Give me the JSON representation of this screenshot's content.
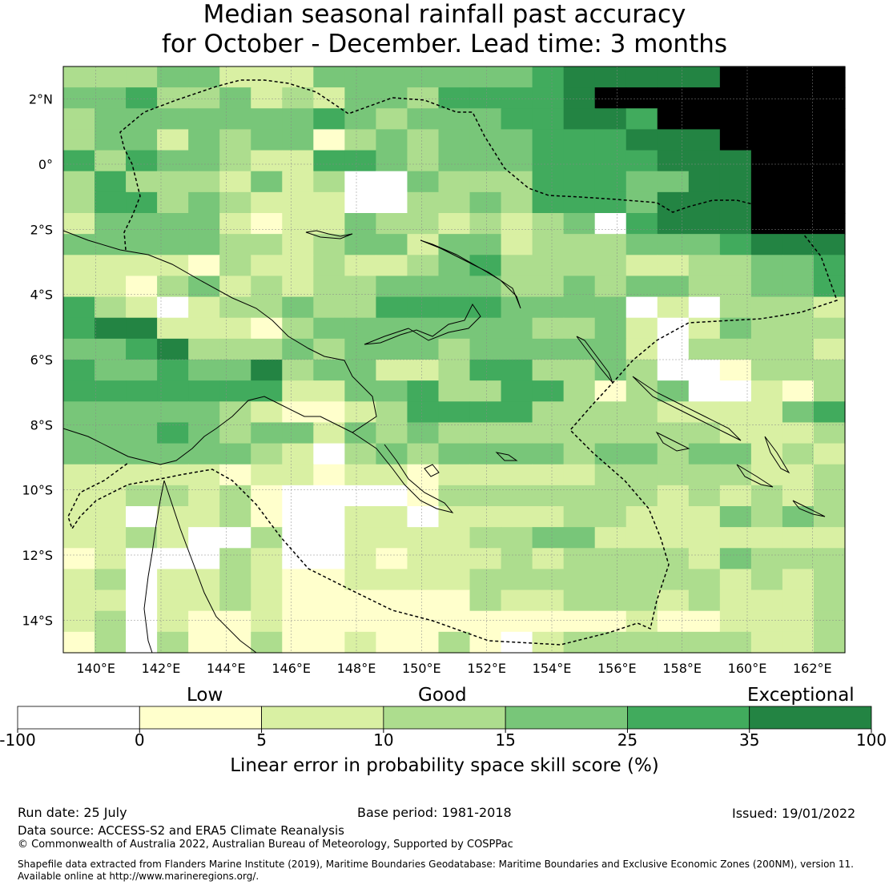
{
  "title_line1": "Median seasonal rainfall past accuracy",
  "title_line2": "for October - December. Lead time: 3 months",
  "map": {
    "lon_range": [
      139,
      163
    ],
    "lat_range": [
      -15,
      3
    ],
    "lon_ticks": [
      "140°E",
      "142°E",
      "144°E",
      "146°E",
      "148°E",
      "150°E",
      "152°E",
      "154°E",
      "156°E",
      "158°E",
      "160°E",
      "162°E"
    ],
    "lat_ticks": [
      "2°N",
      "0°",
      "2°S",
      "4°S",
      "6°S",
      "8°S",
      "10°S",
      "12°S",
      "14°S"
    ],
    "skill_rows": [
      "3334422244444445666667777",
      "4453342324435555677777777",
      "3444444454344455665777777",
      "3442434413434445556667777",
      "5354432255434445555666777",
      "3533324230043335554466777",
      "3553432220033435554666777",
      "2444421224332323405666777",
      "4444433234424423334445666",
      "2222132232234533332233445",
      "2213423233444433434433445",
      "5320233433555544440203332",
      "5662221344444443342024333",
      "4456333434443444442033332",
      "5445446344223553343001333",
      "5555555224453355313400213",
      "4444432112355553333222245",
      "4445434424343333333332223",
      "4444443203434444344344232",
      "2222212212212222233333223",
      "2233231000013333333232323",
      "2202231002202222332224343",
      "2232003002222334422222222",
      "1200032002122232333324333",
      "2302232112222333333332323",
      "2202232111111322333232223",
      "2302112111111111112112223",
      "1303113112113102333333223"
    ]
  },
  "colorbar": {
    "word_low": "Low",
    "word_good": "Good",
    "word_exceptional": "Exceptional",
    "ticks": [
      "-100",
      "0",
      "5",
      "10",
      "15",
      "25",
      "35",
      "100"
    ],
    "colors": [
      "#ffffff",
      "#ffffcc",
      "#d9f0a3",
      "#addd8e",
      "#78c679",
      "#41ab5d",
      "#238443"
    ],
    "label": "Linear error in probability space skill score (%)"
  },
  "footer": {
    "run_date": "Run date: 25 July",
    "base_period": "Base period: 1981-2018",
    "issued": "Issued: 19/01/2022",
    "data_source": "Data source: ACCESS-S2 and ERA5 Climate Reanalysis",
    "copyright": "© Commonwealth of Australia 2022, Australian Bureau of Meteorology, Supported by COSPPac",
    "shapefile1": "Shapefile data extracted from Flanders Marine Institute (2019), Maritime Boundaries Geodatabase: Maritime Boundaries and Exclusive Economic Zones (200NM), version 11.",
    "shapefile2": "Available online at http://www.marineregions.org/."
  }
}
